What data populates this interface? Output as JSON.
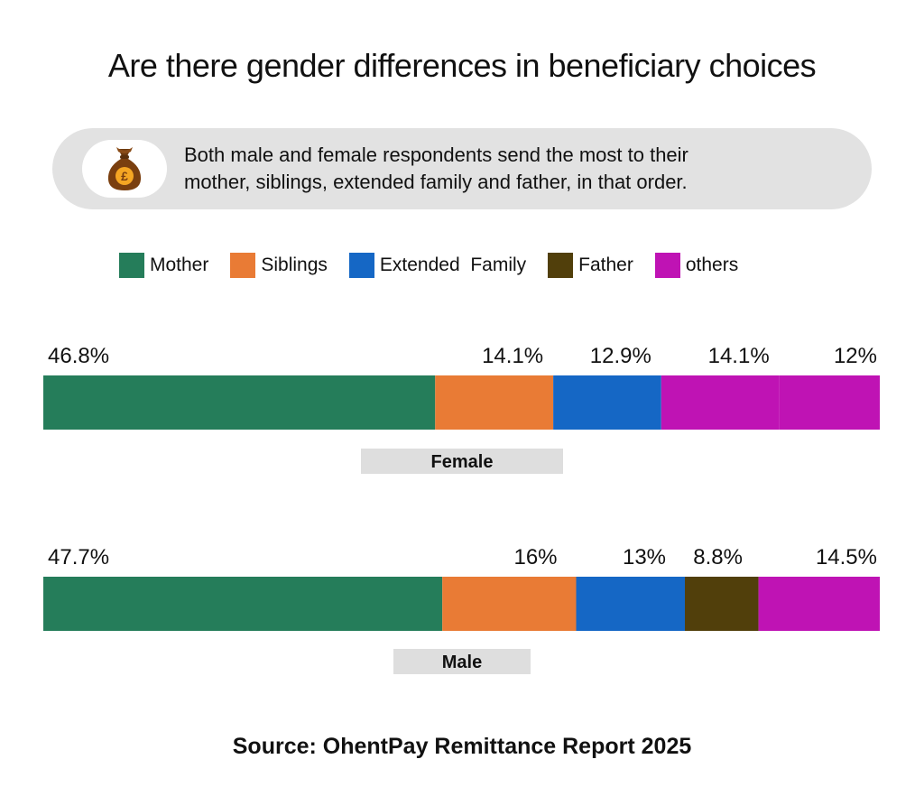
{
  "title": "Are there gender differences in beneficiary choices",
  "callout": {
    "icon": "money-bag-pound-icon",
    "text_line1": "Both male and female respondents send the most to their",
    "text_line2": "mother, siblings, extended family and father, in that order."
  },
  "source": "Source: OhentPay Remittance Report 2025",
  "chart_data": {
    "type": "bar",
    "orientation": "horizontal-stacked",
    "title": "Are there gender differences in beneficiary choices",
    "legend": [
      {
        "name": "Mother",
        "color": "#257d5a"
      },
      {
        "name": "Siblings",
        "color": "#e97b35"
      },
      {
        "name": "Extended  Family",
        "color": "#1567c5"
      },
      {
        "name": "Father",
        "color": "#513f0b"
      },
      {
        "name": "others",
        "color": "#bf13b4"
      }
    ],
    "groups": [
      {
        "label": "Female",
        "segments": [
          {
            "series": "Mother",
            "value": 46.8,
            "label": "46.8%",
            "color": "#257d5a"
          },
          {
            "series": "Siblings",
            "value": 14.1,
            "label": "14.1%",
            "color": "#e97b35"
          },
          {
            "series": "Extended  Family",
            "value": 12.9,
            "label": "12.9%",
            "color": "#1567c5"
          },
          {
            "series": "others",
            "value": 14.1,
            "label": "14.1%",
            "color": "#bf13b4"
          },
          {
            "series": "others",
            "value": 12,
            "label": "12%",
            "color": "#bf13b4"
          }
        ]
      },
      {
        "label": "Male",
        "segments": [
          {
            "series": "Mother",
            "value": 47.7,
            "label": "47.7%",
            "color": "#257d5a"
          },
          {
            "series": "Siblings",
            "value": 16,
            "label": "16%",
            "color": "#e97b35"
          },
          {
            "series": "Extended  Family",
            "value": 13,
            "label": "13%",
            "color": "#1567c5"
          },
          {
            "series": "Father",
            "value": 8.8,
            "label": "8.8%",
            "color": "#513f0b"
          },
          {
            "series": "others",
            "value": 14.5,
            "label": "14.5%",
            "color": "#bf13b4"
          }
        ]
      }
    ]
  }
}
